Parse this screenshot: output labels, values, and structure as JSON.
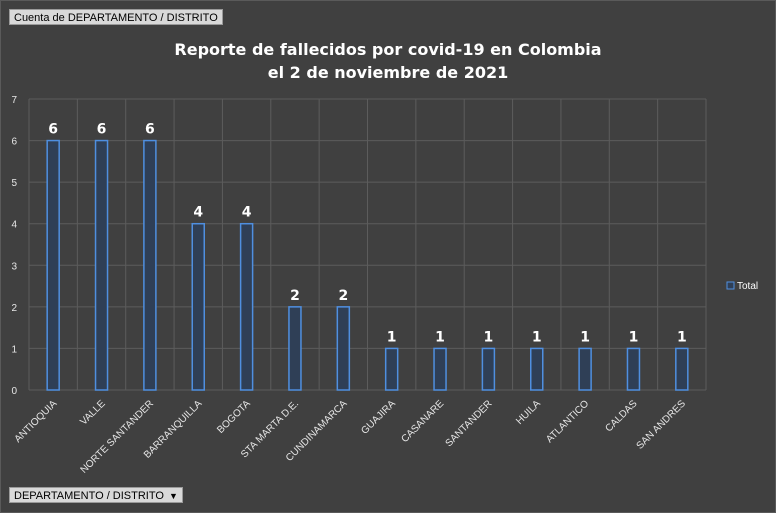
{
  "pivot": {
    "value_field_label": "Cuenta de DEPARTAMENTO / DISTRITO",
    "axis_field_label": "DEPARTAMENTO / DISTRITO",
    "dropdown_icon": "chevron-down-icon"
  },
  "chart_data": {
    "type": "bar",
    "title_line1": "Reporte de fallecidos por covid-19 en Colombia",
    "title_line2": "el 2 de noviembre de 2021",
    "categories": [
      "ANTIOQUIA",
      "VALLE",
      "NORTE SANTANDER",
      "BARRANQUILLA",
      "BOGOTA",
      "STA MARTA D.E.",
      "CUNDINAMARCA",
      "GUAJIRA",
      "CASANARE",
      "SANTANDER",
      "HUILA",
      "ATLANTICO",
      "CALDAS",
      "SAN ANDRES"
    ],
    "series": [
      {
        "name": "Total",
        "values": [
          6,
          6,
          6,
          4,
          4,
          2,
          2,
          1,
          1,
          1,
          1,
          1,
          1,
          1
        ]
      }
    ],
    "ylim": [
      0,
      7
    ],
    "yticks": [
      0,
      1,
      2,
      3,
      4,
      5,
      6,
      7
    ],
    "grid": true,
    "legend_position": "right",
    "colors": {
      "background": "#404040",
      "bar_fill": "#2f3f56",
      "bar_stroke": "#4f8fe0",
      "grid": "#5c5c5c",
      "text": "#ffffff",
      "axis_text": "#e6e6e6"
    }
  }
}
